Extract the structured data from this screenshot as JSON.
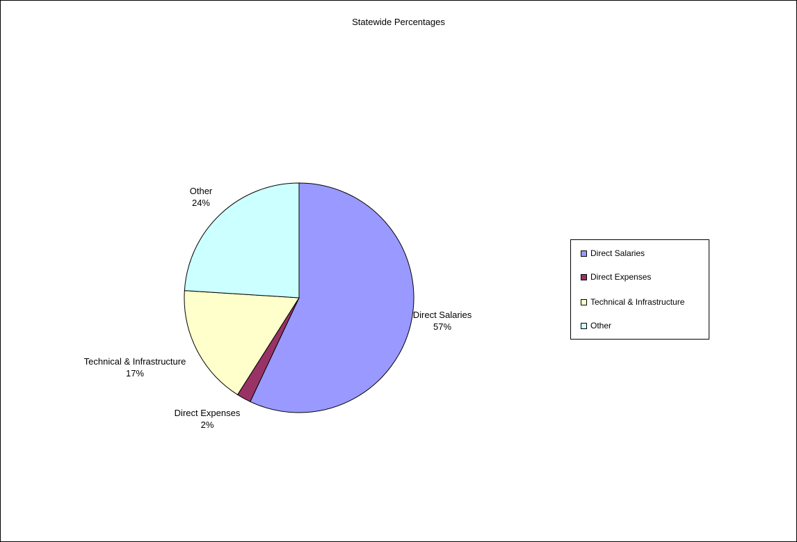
{
  "chart_data": {
    "type": "pie",
    "title": "Statewide Percentages",
    "legend_position": "right",
    "slices": [
      {
        "name": "Direct Salaries",
        "value": 57,
        "label_pct": "57%",
        "color": "#9999ff"
      },
      {
        "name": "Direct Expenses",
        "value": 2,
        "label_pct": "2%",
        "color": "#993366"
      },
      {
        "name": "Technical & Infrastructure",
        "value": 17,
        "label_pct": "17%",
        "color": "#ffffcc"
      },
      {
        "name": "Other",
        "value": 24,
        "label_pct": "24%",
        "color": "#ccffff"
      }
    ]
  }
}
